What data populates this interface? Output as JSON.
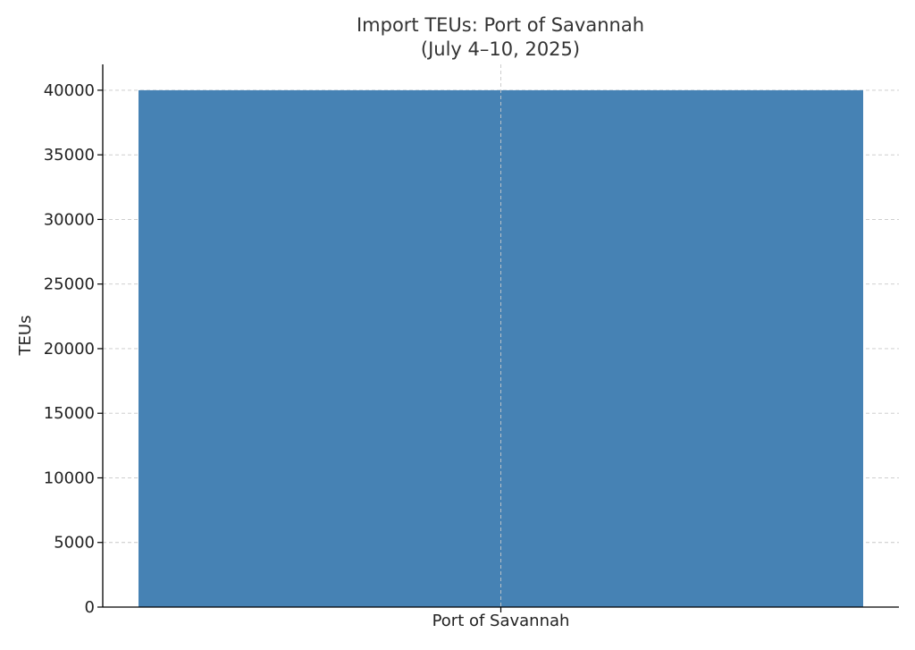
{
  "chart_data": {
    "type": "bar",
    "title": "Import TEUs: Port of Savannah",
    "subtitle": "(July 4–10, 2025)",
    "xlabel": "",
    "ylabel": "TEUs",
    "categories": [
      "Port of Savannah"
    ],
    "values": [
      40000
    ],
    "ylim": [
      0,
      42000
    ],
    "yticks": [
      0,
      5000,
      10000,
      15000,
      20000,
      25000,
      30000,
      35000,
      40000
    ],
    "ytick_labels": [
      "0",
      "5000",
      "10000",
      "15000",
      "20000",
      "25000",
      "30000",
      "35000",
      "40000"
    ],
    "grid": true,
    "legend": "none",
    "colors": {
      "bar": "#4682b4",
      "grid": "#c8c8c8",
      "axis": "#000000",
      "title": "#333333"
    }
  }
}
